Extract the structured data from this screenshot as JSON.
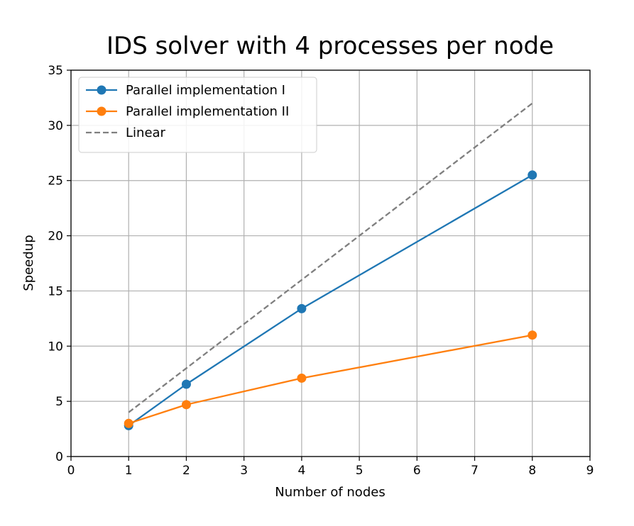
{
  "chart_data": {
    "type": "line",
    "title": "IDS solver with 4 processes per node",
    "xlabel": "Number of nodes",
    "ylabel": "Speedup",
    "xlim": [
      0,
      9
    ],
    "ylim": [
      0,
      35
    ],
    "xticks": [
      0,
      1,
      2,
      3,
      4,
      5,
      6,
      7,
      8,
      9
    ],
    "yticks": [
      0,
      5,
      10,
      15,
      20,
      25,
      30,
      35
    ],
    "grid": true,
    "legend_position": "upper-left",
    "series": [
      {
        "name": "Parallel implementation I",
        "color": "#1f77b4",
        "style": "solid",
        "markers": true,
        "x": [
          1,
          2,
          4,
          8
        ],
        "y": [
          2.8,
          6.55,
          13.4,
          25.5
        ]
      },
      {
        "name": "Parallel implementation II",
        "color": "#ff7f0e",
        "style": "solid",
        "markers": true,
        "x": [
          1,
          2,
          4,
          8
        ],
        "y": [
          3.0,
          4.7,
          7.1,
          11.0
        ]
      },
      {
        "name": "Linear",
        "color": "#7f7f7f",
        "style": "dashed",
        "markers": false,
        "x": [
          1,
          2,
          4,
          8
        ],
        "y": [
          4,
          8,
          16,
          32
        ]
      }
    ]
  }
}
